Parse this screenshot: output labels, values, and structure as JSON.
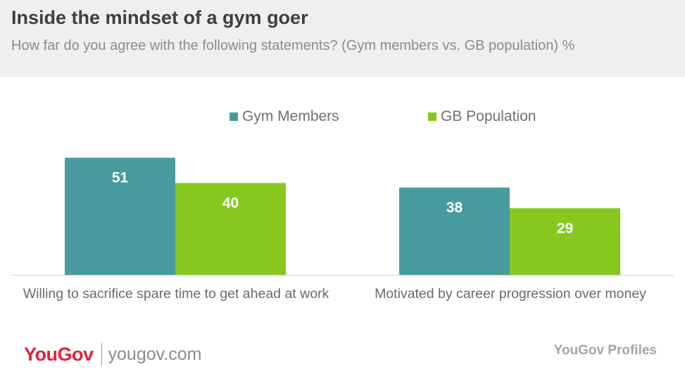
{
  "header": {
    "title": "Inside the mindset of a gym goer",
    "subtitle": "How far do you agree with the following statements? (Gym members vs. GB population) %"
  },
  "colors": {
    "gym_members": "#479b9e",
    "gb_population": "#86c81e",
    "header_bg": "#efefef",
    "brand_red": "#e2213b"
  },
  "chart_data": {
    "type": "bar",
    "title": "Inside the mindset of a gym goer",
    "subtitle": "How far do you agree with the following statements? (Gym members vs. GB population) %",
    "categories": [
      "Willing to sacrifice spare time to get ahead at work",
      "Motivated by career progression over money"
    ],
    "series": [
      {
        "name": "Gym Members",
        "values": [
          51,
          38
        ]
      },
      {
        "name": "GB Population",
        "values": [
          40,
          29
        ]
      }
    ],
    "ylim": [
      0,
      60
    ],
    "grid": false,
    "legend_position": "top-center",
    "data_labels": true
  },
  "footer": {
    "logo": "YouGov",
    "site": "yougov.com",
    "profiles": "YouGov Profiles"
  }
}
